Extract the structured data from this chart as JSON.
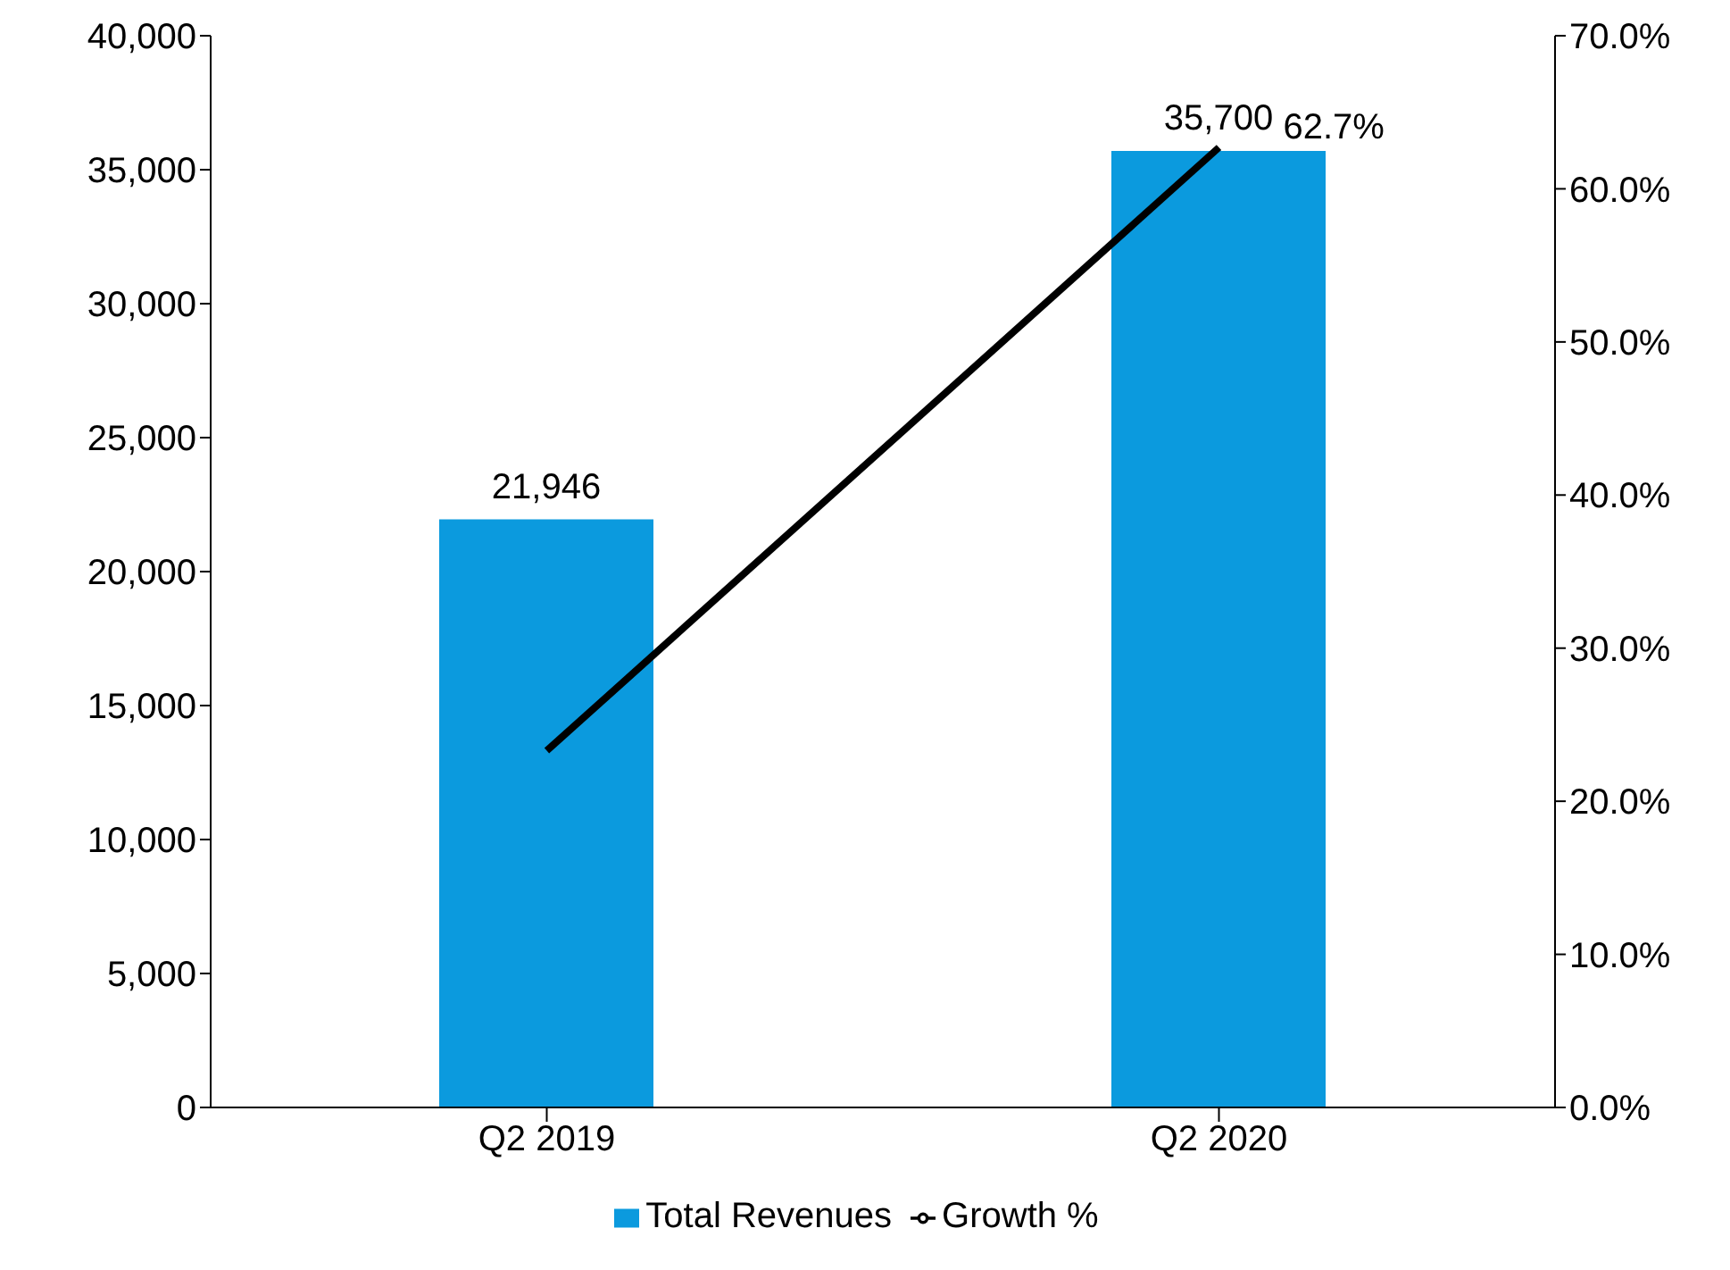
{
  "chart_data": {
    "type": "bar",
    "categories": [
      "Q2 2019",
      "Q2 2020"
    ],
    "series": [
      {
        "name": "Total Revenues",
        "color": "#0b9ade",
        "values": [
          21946,
          35700
        ],
        "value_labels": [
          "21,946",
          "35,700"
        ]
      },
      {
        "name": "Growth %",
        "type": "line",
        "axis": "y2",
        "color": "#000000",
        "values": [
          23.3,
          62.7
        ],
        "value_labels": [
          null,
          "62.7%"
        ]
      }
    ],
    "ylim": [
      0,
      40000
    ],
    "yticks": [
      {
        "value": 0,
        "label": "0"
      },
      {
        "value": 5000,
        "label": "5,000"
      },
      {
        "value": 10000,
        "label": "10,000"
      },
      {
        "value": 15000,
        "label": "15,000"
      },
      {
        "value": 20000,
        "label": "20,000"
      },
      {
        "value": 25000,
        "label": "25,000"
      },
      {
        "value": 30000,
        "label": "30,000"
      },
      {
        "value": 35000,
        "label": "35,000"
      },
      {
        "value": 40000,
        "label": "40,000"
      }
    ],
    "y2lim": [
      0,
      70
    ],
    "y2ticks": [
      {
        "value": 0,
        "label": "0.0%"
      },
      {
        "value": 10,
        "label": "10.0%"
      },
      {
        "value": 20,
        "label": "20.0%"
      },
      {
        "value": 30,
        "label": "30.0%"
      },
      {
        "value": 40,
        "label": "40.0%"
      },
      {
        "value": 50,
        "label": "50.0%"
      },
      {
        "value": 60,
        "label": "60.0%"
      },
      {
        "value": 70,
        "label": "70.0%"
      }
    ],
    "grid": false,
    "legend": "bottom",
    "marker": "none",
    "line_style": "solid"
  }
}
